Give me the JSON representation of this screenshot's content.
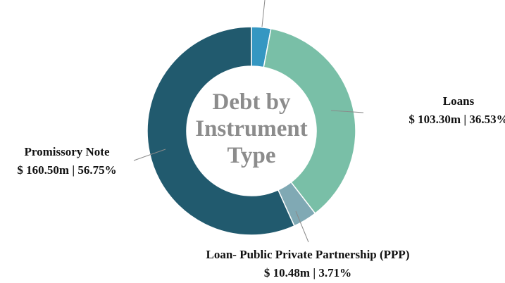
{
  "chart_data": {
    "type": "donut",
    "title": "Debt by Instrument Type",
    "categories": [
      null,
      "Loans",
      "Loan- Public Private Partnership (PPP)",
      "Promissory Note"
    ],
    "values": [
      3.01,
      36.53,
      3.71,
      56.75
    ],
    "value_labels": [
      null,
      "$ 103.30m | 36.53%",
      "$ 10.48m | 3.71%",
      "$ 160.50m | 56.75%"
    ],
    "colors": [
      "#3597c2",
      "#79bfa7",
      "#80a9b4",
      "#215a6e"
    ]
  }
}
